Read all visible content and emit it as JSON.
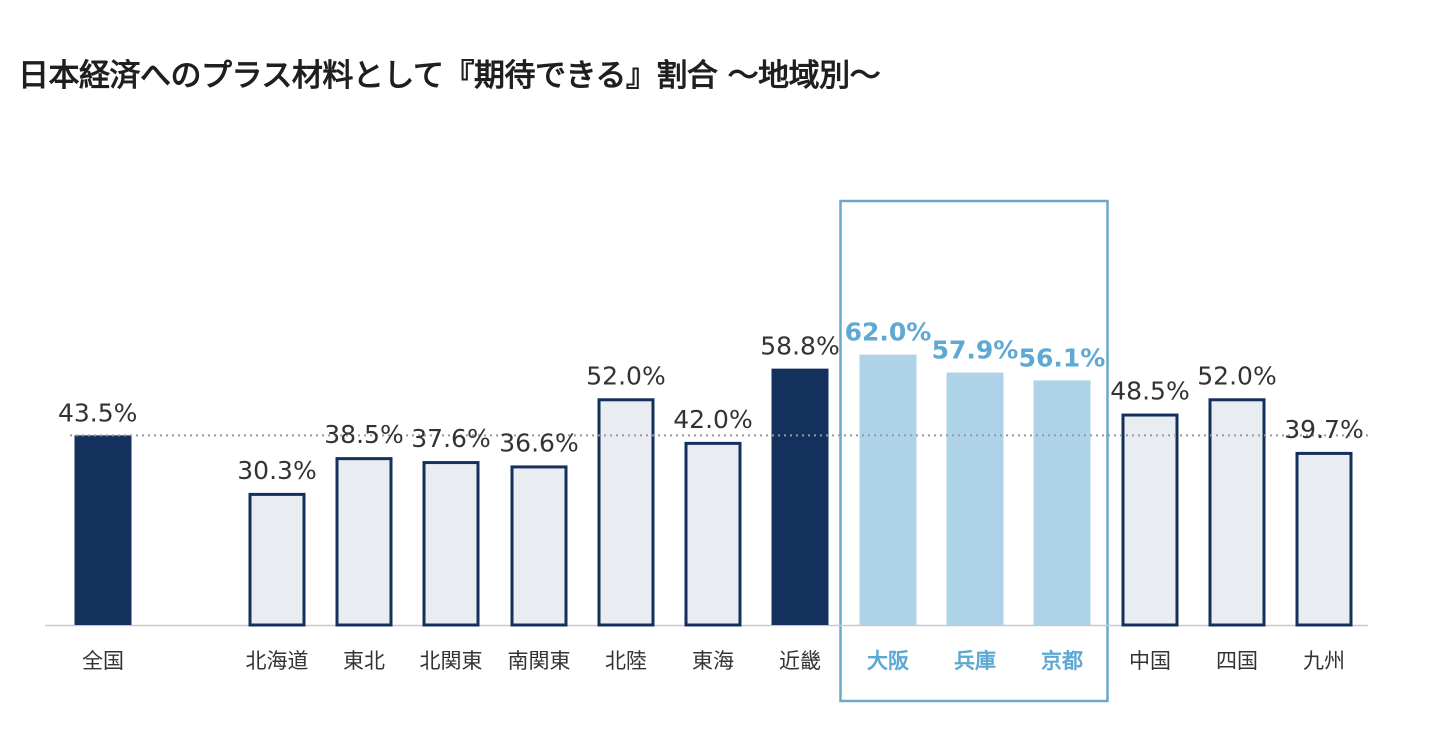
{
  "chart_data": {
    "type": "bar",
    "title": "日本経済へのプラス材料として『期待できる』割合 〜地域別〜",
    "xlabel": "",
    "ylabel": "",
    "ylim": [
      0,
      100
    ],
    "unit": "%",
    "reference_line": 43.5,
    "categories": [
      "全国",
      "北海道",
      "東北",
      "北関東",
      "南関東",
      "北陸",
      "東海",
      "近畿",
      "大阪",
      "兵庫",
      "京都",
      "中国",
      "四国",
      "九州"
    ],
    "values": [
      43.5,
      30.3,
      38.5,
      37.6,
      36.6,
      52.0,
      42.0,
      58.8,
      62.0,
      57.9,
      56.1,
      48.5,
      52.0,
      39.7
    ],
    "value_labels": [
      "43.5%",
      "30.3%",
      "38.5%",
      "37.6%",
      "36.6%",
      "52.0%",
      "42.0%",
      "58.8%",
      "62.0%",
      "57.9%",
      "56.1%",
      "48.5%",
      "52.0%",
      "39.7%"
    ],
    "styles": [
      "dark",
      "outline",
      "outline",
      "outline",
      "outline",
      "outline",
      "outline",
      "dark",
      "light",
      "light",
      "light",
      "outline",
      "outline",
      "outline"
    ],
    "highlight_group": [
      "大阪",
      "兵庫",
      "京都"
    ],
    "colors": {
      "dark": "#14315e",
      "outline_fill": "#e9ecf1",
      "outline_stroke": "#14315e",
      "light": "#aed3e8",
      "light_text": "#5ea8d4",
      "highlight_box": "#6aa8c9",
      "reference_line": "#999999",
      "baseline": "#c9c9c9",
      "label_text": "#333333"
    }
  }
}
